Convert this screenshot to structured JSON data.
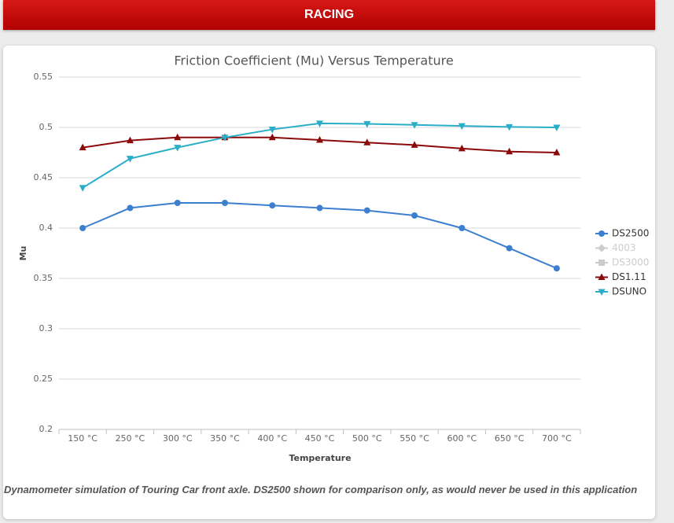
{
  "header": {
    "title": "RACING"
  },
  "chart_data": {
    "type": "line",
    "title": "Friction Coefficient (Mu) Versus Temperature",
    "x_label": "Temperature",
    "y_label": "Mu",
    "categories": [
      "150 °C",
      "250 °C",
      "300 °C",
      "350 °C",
      "400 °C",
      "450 °C",
      "500 °C",
      "550 °C",
      "600 °C",
      "650 °C",
      "700 °C"
    ],
    "ylim": [
      0.2,
      0.55
    ],
    "yticks": [
      0.55,
      0.5,
      0.45,
      0.4,
      0.35,
      0.3,
      0.25,
      0.2
    ],
    "grid": true,
    "legend": "right",
    "series": [
      {
        "name": "DS2500",
        "color": "#3d7fcf",
        "symbol": "circle",
        "visible": true,
        "values": [
          0.4,
          0.42,
          0.425,
          0.425,
          0.4225,
          0.42,
          0.4175,
          0.4125,
          0.4,
          0.38,
          0.36
        ]
      },
      {
        "name": "4003",
        "color": "#cccccc",
        "symbol": "diamond",
        "visible": false,
        "values": [
          null,
          null,
          null,
          null,
          null,
          null,
          null,
          null,
          null,
          null,
          null
        ]
      },
      {
        "name": "DS3000",
        "color": "#cccccc",
        "symbol": "square",
        "visible": false,
        "values": [
          null,
          null,
          null,
          null,
          null,
          null,
          null,
          null,
          null,
          null,
          null
        ]
      },
      {
        "name": "DS1.11",
        "color": "#8b0a0a",
        "symbol": "triangle",
        "visible": true,
        "values": [
          0.48,
          0.487,
          0.49,
          0.49,
          0.49,
          0.4875,
          0.485,
          0.4825,
          0.479,
          0.476,
          0.475
        ]
      },
      {
        "name": "DSUNO",
        "color": "#2aaec8",
        "symbol": "triangle-down",
        "visible": true,
        "values": [
          0.44,
          0.469,
          0.48,
          0.49,
          0.498,
          0.504,
          0.5035,
          0.5025,
          0.5015,
          0.5005,
          0.5
        ]
      }
    ]
  },
  "footer": {
    "note": "Dynamometer simulation of Touring Car front axle. DS2500 shown for comparison only, as would never be used in this application"
  }
}
